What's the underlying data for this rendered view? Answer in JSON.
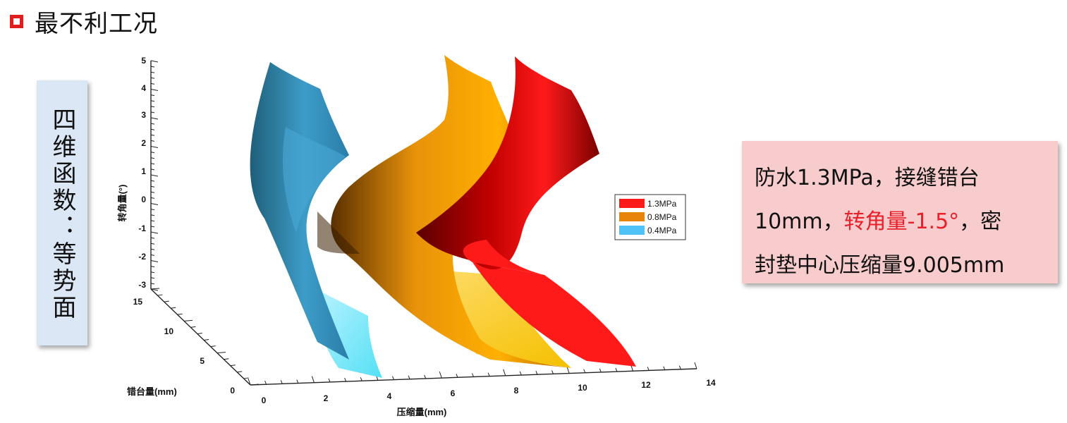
{
  "slide": {
    "title": "最不利工况",
    "side_label": "四维函数：等势面",
    "info": {
      "line1": "防水1.3MPa，接缝错台",
      "line2_pre": "10mm，",
      "line2_highlight": "转角量-1.5°",
      "line2_post": "，密",
      "line3": "封垫中心压缩量9.005mm"
    }
  },
  "colors": {
    "marker": "#e01e1e",
    "side_box": "#dbe7f5",
    "info_box": "#f8cccc",
    "highlight": "#e8202a"
  },
  "chart_data": {
    "type": "surface3d",
    "x_axis": {
      "label": "压缩量(mm)",
      "ticks": [
        "0",
        "2",
        "4",
        "6",
        "8",
        "10",
        "12",
        "14"
      ],
      "range": [
        0,
        14
      ]
    },
    "y_axis": {
      "label": "错台量(mm)",
      "ticks": [
        "0",
        "5",
        "10",
        "15"
      ],
      "range": [
        0,
        15
      ]
    },
    "z_axis": {
      "label": "转角量(°)",
      "ticks": [
        "5",
        "4",
        "3",
        "2",
        "1",
        "0",
        "-1",
        "-2",
        "-3"
      ],
      "range": [
        -3,
        5
      ]
    },
    "legend": {
      "placement": "right",
      "entries": [
        {
          "name": "1.3MPa",
          "color": "#ff1a1a"
        },
        {
          "name": "0.8MPa",
          "color": "#e8840a"
        },
        {
          "name": "0.4MPa",
          "color": "#4fc3f7"
        }
      ]
    },
    "series": [
      {
        "name": "1.3MPa",
        "compression_at_floor": 12,
        "color": "#ff1a1a"
      },
      {
        "name": "0.8MPa",
        "compression_at_floor": 10,
        "color": "#f0a000"
      },
      {
        "name": "0.4MPa",
        "compression_at_floor": 4,
        "color": "#4fc3f7"
      }
    ]
  }
}
